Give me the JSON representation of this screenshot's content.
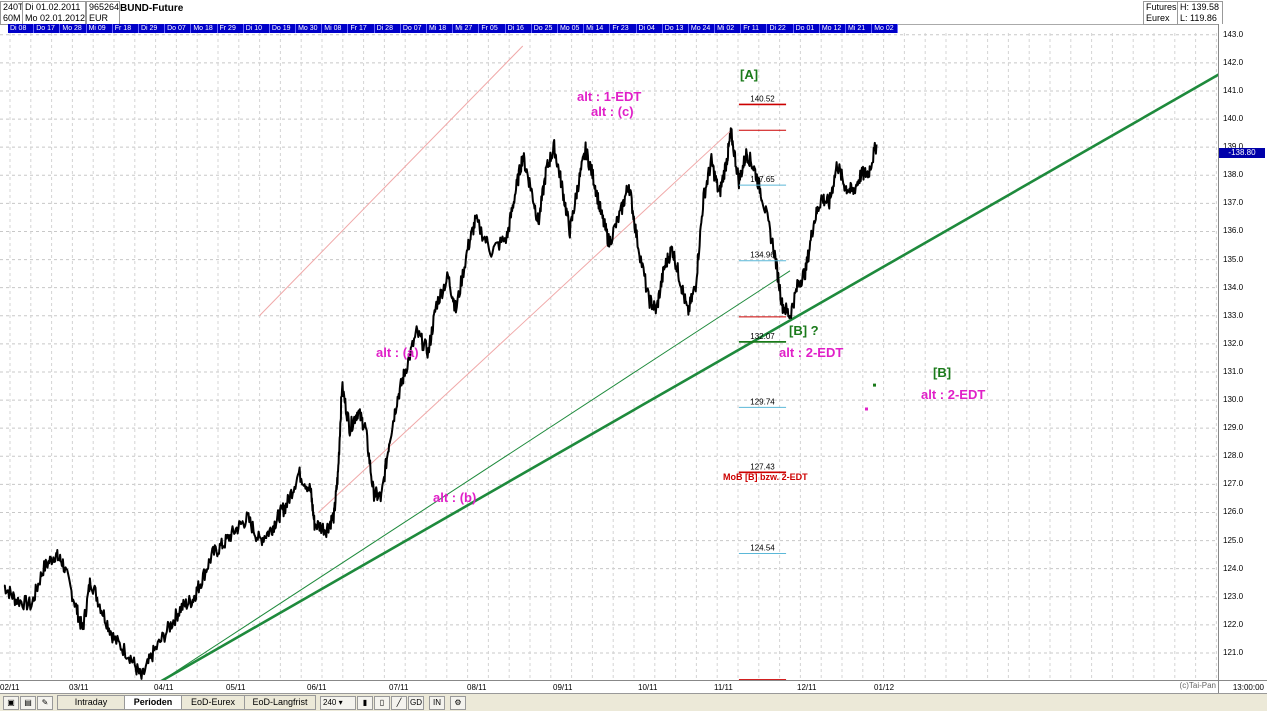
{
  "header": {
    "tf1": "240T",
    "tf2": "60M",
    "from": "Di 01.02.2011",
    "to": "Mo 02.01.2012",
    "id": "965264",
    "currency": "EUR",
    "title": "BUND-Future",
    "exchange_type": "Futures",
    "exchange": "Eurex",
    "high": "H: 139.58",
    "low": "L: 119.86"
  },
  "date_bar": [
    "Di 08",
    "Do 17",
    "Mo 28",
    "Mi 09",
    "Fr 18",
    "Di 29",
    "Do 07",
    "Mo 18",
    "Fr 29",
    "Di 10",
    "Do 19",
    "Mo 30",
    "Mi 08",
    "Fr 17",
    "Di 28",
    "Do 07",
    "Mi 18",
    "Mi 27",
    "Fr 05",
    "Di 16",
    "Do 25",
    "Mo 05",
    "Mi 14",
    "Fr 23",
    "Di 04",
    "Do 13",
    "Mo 24",
    "Mi 02",
    "Fr 11",
    "Di 22",
    "Do 01",
    "Mo 12",
    "Mi 21",
    "Mo 02"
  ],
  "colors": {
    "price": "#000000",
    "trend": "#1e8a3c",
    "magenta": "#e020c8",
    "green": "#1a7a1a",
    "red": "#cc0000",
    "cyan": "#5bb8d8",
    "date_bar": "#0000c8"
  },
  "chart_data": {
    "type": "line",
    "title": "BUND-Future",
    "ylim": [
      120.0,
      143.0
    ],
    "y_ticks": [
      121,
      122,
      123,
      124,
      125,
      126,
      127,
      128,
      129,
      130,
      131,
      132,
      133,
      134,
      135,
      136,
      137,
      138,
      139,
      140,
      141,
      142,
      143
    ],
    "y_last": "138.80",
    "x_ticks": [
      "02/11",
      "03/11",
      "04/11",
      "05/11",
      "06/11",
      "07/11",
      "08/11",
      "09/11",
      "10/11",
      "11/11",
      "12/11",
      "01/12"
    ],
    "series": [
      {
        "values": [
          [
            0,
            123.4
          ],
          [
            0.3,
            122.9
          ],
          [
            0.7,
            122.7
          ],
          [
            1.0,
            124.0
          ],
          [
            1.3,
            124.5
          ],
          [
            1.5,
            124.2
          ],
          [
            1.8,
            122.8
          ],
          [
            2.0,
            121.8
          ],
          [
            2.2,
            123.6
          ],
          [
            2.5,
            122.5
          ],
          [
            2.8,
            121.5
          ],
          [
            3.2,
            120.9
          ],
          [
            3.5,
            120.1
          ],
          [
            3.8,
            121.0
          ],
          [
            4.2,
            121.9
          ],
          [
            4.5,
            122.6
          ],
          [
            4.8,
            122.9
          ],
          [
            5.0,
            123.5
          ],
          [
            5.3,
            124.5
          ],
          [
            5.6,
            124.9
          ],
          [
            5.9,
            125.4
          ],
          [
            6.2,
            125.8
          ],
          [
            6.5,
            125.0
          ],
          [
            6.8,
            125.4
          ],
          [
            7.0,
            125.9
          ],
          [
            7.2,
            126.3
          ],
          [
            7.5,
            127.4
          ],
          [
            7.8,
            126.8
          ],
          [
            7.9,
            125.6
          ],
          [
            8.2,
            125.4
          ],
          [
            8.4,
            125.9
          ],
          [
            8.5,
            127.4
          ],
          [
            8.6,
            130.5
          ],
          [
            8.8,
            129.0
          ],
          [
            9.0,
            129.6
          ],
          [
            9.2,
            129.0
          ],
          [
            9.4,
            126.7
          ],
          [
            9.6,
            126.5
          ],
          [
            9.8,
            128.5
          ],
          [
            10.0,
            130.0
          ],
          [
            10.2,
            131.0
          ],
          [
            10.5,
            132.4
          ],
          [
            10.8,
            131.7
          ],
          [
            11.0,
            133.4
          ],
          [
            11.3,
            134.4
          ],
          [
            11.5,
            133.2
          ],
          [
            11.8,
            135.4
          ],
          [
            12.0,
            136.4
          ],
          [
            12.4,
            135.3
          ],
          [
            12.8,
            135.8
          ],
          [
            13.0,
            137.3
          ],
          [
            13.2,
            138.7
          ],
          [
            13.4,
            137.6
          ],
          [
            13.6,
            136.3
          ],
          [
            13.8,
            138.2
          ],
          [
            14.0,
            139.0
          ],
          [
            14.2,
            137.6
          ],
          [
            14.4,
            136.0
          ],
          [
            14.6,
            137.6
          ],
          [
            14.8,
            138.9
          ],
          [
            15.0,
            137.9
          ],
          [
            15.2,
            136.6
          ],
          [
            15.4,
            135.6
          ],
          [
            15.7,
            136.7
          ],
          [
            15.9,
            137.7
          ],
          [
            16.1,
            135.8
          ],
          [
            16.4,
            133.6
          ],
          [
            16.6,
            133.2
          ],
          [
            16.8,
            134.7
          ],
          [
            17.0,
            135.4
          ],
          [
            17.2,
            134.3
          ],
          [
            17.4,
            133.1
          ],
          [
            17.6,
            134.1
          ],
          [
            17.8,
            137.2
          ],
          [
            18.0,
            138.5
          ],
          [
            18.2,
            137.3
          ],
          [
            18.4,
            138.6
          ],
          [
            18.5,
            139.5
          ],
          [
            18.7,
            137.8
          ],
          [
            18.9,
            138.8
          ],
          [
            19.1,
            138.2
          ],
          [
            19.3,
            137.2
          ],
          [
            19.6,
            135.3
          ],
          [
            19.8,
            133.4
          ],
          [
            20.0,
            133.0
          ],
          [
            20.2,
            134.1
          ],
          [
            20.4,
            134.6
          ],
          [
            20.6,
            136.3
          ],
          [
            20.8,
            137.2
          ],
          [
            21.0,
            137.0
          ],
          [
            21.2,
            138.4
          ],
          [
            21.4,
            137.6
          ],
          [
            21.6,
            137.4
          ],
          [
            21.8,
            138.0
          ],
          [
            22.0,
            138.1
          ],
          [
            22.2,
            139.1
          ]
        ]
      }
    ],
    "drawings": [
      {
        "type": "trendline",
        "width": "thick",
        "from": [
          4.0,
          120.0
        ],
        "to": [
          31.3,
          141.9
        ]
      },
      {
        "type": "trendline",
        "width": "thin",
        "from": [
          4.0,
          120.0
        ],
        "to": [
          20.0,
          134.6
        ]
      },
      {
        "type": "channel",
        "from": [
          6.5,
          133.0
        ],
        "to": [
          13.2,
          142.6
        ]
      },
      {
        "type": "channel",
        "from": [
          8.0,
          126.0
        ],
        "to": [
          18.5,
          139.6
        ]
      },
      {
        "type": "fib_levels",
        "x_range": [
          18.7,
          19.9
        ],
        "levels": [
          {
            "value": 140.52,
            "label": "140.52",
            "color": "red"
          },
          {
            "value": 139.6,
            "label": "",
            "color": "red"
          },
          {
            "value": 137.65,
            "label": "137.65",
            "color": "cyan"
          },
          {
            "value": 134.96,
            "label": "134.96",
            "color": "cyan"
          },
          {
            "value": 132.96,
            "label": "",
            "color": "red"
          },
          {
            "value": 132.07,
            "label": "132.07",
            "color": "green"
          },
          {
            "value": 129.74,
            "label": "129.74",
            "color": "cyan"
          },
          {
            "value": 127.43,
            "label": "127.43",
            "color": "red"
          },
          {
            "value": 124.54,
            "label": "124.54",
            "color": "cyan"
          },
          {
            "value": 120.05,
            "label": "",
            "color": "red"
          }
        ]
      }
    ],
    "annotations": [
      {
        "id": "a1",
        "text": "[A]",
        "color": "green"
      },
      {
        "id": "a2",
        "text": "alt : 1-EDT",
        "color": "magenta"
      },
      {
        "id": "a3",
        "text": "alt : (c)",
        "color": "magenta"
      },
      {
        "id": "a4",
        "text": "alt : (a)",
        "color": "magenta"
      },
      {
        "id": "a5",
        "text": "alt : (b)",
        "color": "magenta"
      },
      {
        "id": "a6",
        "text": "[B] ?",
        "color": "green"
      },
      {
        "id": "a7",
        "text": "alt : 2-EDT",
        "color": "magenta"
      },
      {
        "id": "a8",
        "text": "[B]",
        "color": "green"
      },
      {
        "id": "a9",
        "text": "alt : 2-EDT",
        "color": "magenta"
      },
      {
        "id": "a10",
        "text": "MoB [B] bzw. 2-EDT",
        "color": "red"
      }
    ]
  },
  "axis": {
    "time": "13:00:00",
    "watermark": "(c)Tai-Pan"
  },
  "toolbar": {
    "tabs": [
      "Intraday",
      "Perioden",
      "EoD-Eurex",
      "EoD-Langfrist"
    ],
    "period": "240",
    "buttons": [
      "GD",
      "IN"
    ]
  }
}
